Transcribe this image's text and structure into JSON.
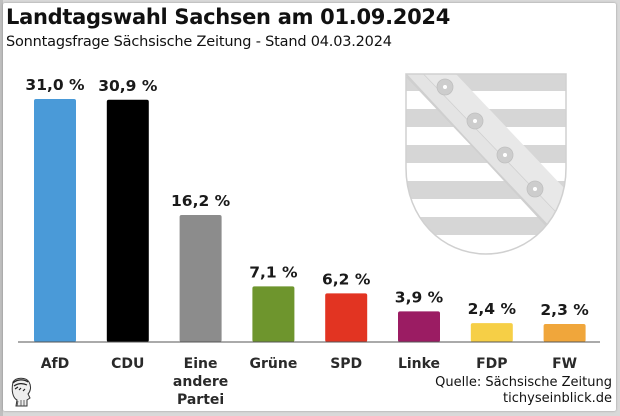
{
  "header": {
    "title": "Landtagswahl Sachsen am 01.09.2024",
    "subtitle": "Sonntagsfrage Sächsische Zeitung - Stand 04.03.2024"
  },
  "footer": {
    "source": "Quelle: Sächsische Zeitung",
    "site": "tichyseinblick.de"
  },
  "chart_data": {
    "type": "bar",
    "title": "Landtagswahl Sachsen am 01.09.2024",
    "subtitle": "Sonntagsfrage Sächsische Zeitung - Stand 04.03.2024",
    "xlabel": "",
    "ylabel": "",
    "ylim": [
      0,
      33
    ],
    "grid": false,
    "categories": [
      "AfD",
      "CDU",
      "Eine andere Partei",
      "Grüne",
      "SPD",
      "Linke",
      "FDP",
      "FW"
    ],
    "category_lines": [
      [
        "AfD"
      ],
      [
        "CDU"
      ],
      [
        "Eine",
        "andere",
        "Partei"
      ],
      [
        "Grüne"
      ],
      [
        "SPD"
      ],
      [
        "Linke"
      ],
      [
        "FDP"
      ],
      [
        "FW"
      ]
    ],
    "values": [
      31.0,
      30.9,
      16.2,
      7.1,
      6.2,
      3.9,
      2.4,
      2.3
    ],
    "value_labels": [
      "31,0 %",
      "30,9 %",
      "16,2 %",
      "7,1 %",
      "6,2 %",
      "3,9 %",
      "2,4 %",
      "2,3 %"
    ],
    "colors": [
      "#4a9ad8",
      "#000000",
      "#8c8c8c",
      "#6e952d",
      "#e23422",
      "#9b1c63",
      "#f6cf46",
      "#f0a63b"
    ]
  }
}
